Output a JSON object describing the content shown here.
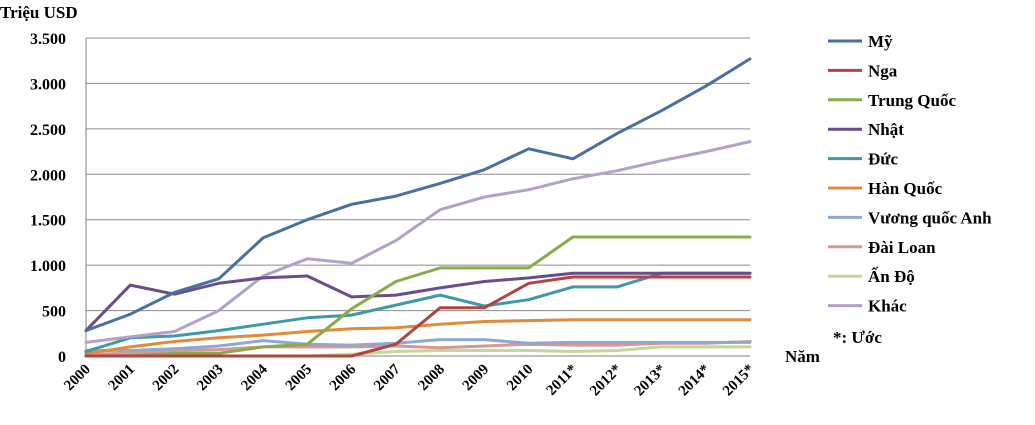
{
  "chart_data": {
    "type": "line",
    "title": "",
    "ylabel": "Triệu USD",
    "xlabel": "Năm",
    "ylim": [
      0,
      3500
    ],
    "yticks": [
      0,
      500,
      1000,
      1500,
      2000,
      2500,
      3000,
      3500
    ],
    "ytick_labels": [
      "0",
      "500",
      "1.000",
      "1.500",
      "2.000",
      "2.500",
      "3.000",
      "3.500"
    ],
    "categories": [
      "2000",
      "2001",
      "2002",
      "2003",
      "2004",
      "2005",
      "2006",
      "2007",
      "2008",
      "2009",
      "2010",
      "2011*",
      "2012*",
      "2013*",
      "2014*",
      "2015*"
    ],
    "legend_position": "right",
    "legend_note": "*: Ước",
    "grid": "horizontal",
    "series": [
      {
        "name": "Mỹ",
        "color": "#4a6fa5",
        "values": [
          280,
          460,
          700,
          850,
          1300,
          1500,
          1670,
          1760,
          1900,
          2050,
          2280,
          2170,
          2450,
          2700,
          2970,
          3270
        ]
      },
      {
        "name": "Nga",
        "color": "#b04542",
        "values": [
          0,
          0,
          0,
          0,
          0,
          0,
          0,
          130,
          530,
          530,
          800,
          870,
          870,
          870,
          870,
          870
        ]
      },
      {
        "name": "Trung Quốc",
        "color": "#8aab4a",
        "values": [
          0,
          0,
          30,
          30,
          100,
          130,
          520,
          820,
          970,
          970,
          970,
          1310,
          1310,
          1310,
          1310,
          1310
        ]
      },
      {
        "name": "Nhật",
        "color": "#6a4d8a",
        "values": [
          280,
          780,
          680,
          800,
          860,
          880,
          650,
          670,
          750,
          820,
          860,
          910,
          910,
          910,
          910,
          910
        ]
      },
      {
        "name": "Đức",
        "color": "#3d9aa6",
        "values": [
          50,
          200,
          220,
          280,
          350,
          420,
          450,
          560,
          670,
          550,
          620,
          760,
          760,
          910,
          910,
          910
        ]
      },
      {
        "name": "Hàn Quốc",
        "color": "#e08a3c",
        "values": [
          30,
          100,
          160,
          200,
          230,
          270,
          300,
          310,
          350,
          380,
          390,
          400,
          400,
          400,
          400,
          400
        ]
      },
      {
        "name": "Vương quốc Anh",
        "color": "#8ea9cf",
        "values": [
          60,
          60,
          80,
          110,
          170,
          130,
          120,
          140,
          180,
          180,
          140,
          150,
          150,
          150,
          150,
          150
        ]
      },
      {
        "name": "Đài Loan",
        "color": "#d99694",
        "values": [
          20,
          30,
          60,
          70,
          100,
          100,
          100,
          110,
          90,
          110,
          130,
          120,
          120,
          140,
          140,
          160
        ]
      },
      {
        "name": "Ấn Độ",
        "color": "#c3d69b",
        "values": [
          0,
          0,
          0,
          0,
          0,
          0,
          20,
          50,
          60,
          60,
          60,
          50,
          60,
          100,
          100,
          100
        ]
      },
      {
        "name": "Khác",
        "color": "#b3a2c7",
        "values": [
          150,
          210,
          270,
          500,
          880,
          1070,
          1020,
          1270,
          1610,
          1750,
          1830,
          1950,
          2040,
          2150,
          2250,
          2360
        ]
      }
    ]
  }
}
